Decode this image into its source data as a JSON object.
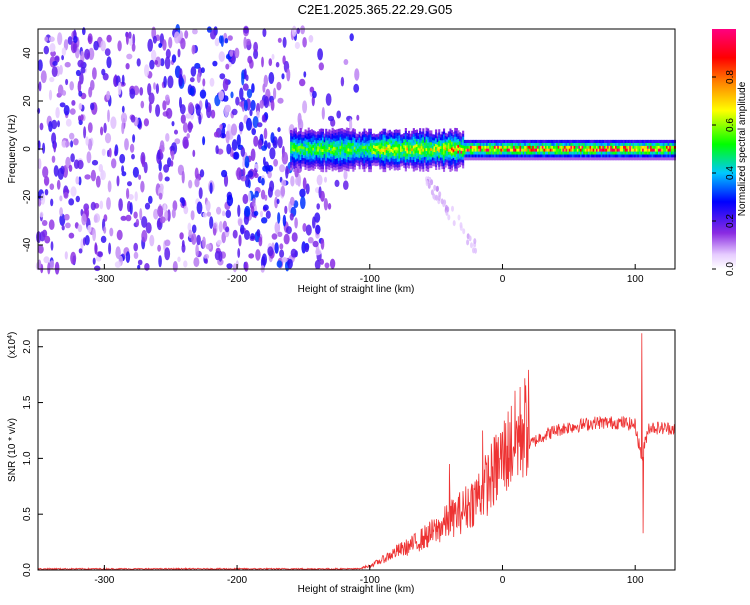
{
  "title": "C2E1.2025.365.22.29.G05",
  "chart_data": [
    {
      "type": "heatmap",
      "title": "C2E1.2025.365.22.29.G05",
      "xlabel": "Height of straight line (km)",
      "ylabel": "Frequency (Hz)",
      "xlim": [
        -350,
        130
      ],
      "ylim": [
        -50,
        50
      ],
      "x_ticks": [
        "-300",
        "-200",
        "-100",
        "0",
        "100"
      ],
      "y_ticks": [
        "-40",
        "-20",
        "0",
        "20",
        "40"
      ],
      "colorbar": {
        "label": "Normalized spectral amplitude",
        "range": [
          0,
          1
        ],
        "ticks": [
          "0.0",
          "0.2",
          "0.4",
          "0.6",
          "0.8"
        ],
        "colors": [
          "#ffffff",
          "#8a2be2",
          "#0000ff",
          "#00c8ff",
          "#00ff00",
          "#ffff00",
          "#ff8000",
          "#ff0000",
          "#ff0080"
        ]
      },
      "features": {
        "scatter_region_km": [
          -350,
          -105
        ],
        "scatter_amplitude": 0.15,
        "band_start_km": -160,
        "band_frequency_hz": 0,
        "band_halfwidth_hz": 4,
        "band_peak_amplitude": 1.0
      }
    },
    {
      "type": "line",
      "xlabel": "Height of straight line (km)",
      "ylabel": "SNR (10 * v/v)",
      "y_multiplier": "(x10",
      "y_multiplier_exp": "4",
      "y_multiplier_close": ")",
      "xlim": [
        -350,
        130
      ],
      "ylim": [
        0,
        2.15
      ],
      "x_ticks": [
        "-300",
        "-200",
        "-100",
        "0",
        "100"
      ],
      "y_ticks": [
        "0.0",
        "0.5",
        "1.0",
        "1.5",
        "2.0"
      ],
      "series_color": "#ee3333",
      "envelope": {
        "x": [
          -350,
          -110,
          -100,
          -90,
          -80,
          -70,
          -60,
          -50,
          -40,
          -30,
          -20,
          -10,
          0,
          10,
          20,
          30,
          40,
          50,
          60,
          70,
          80,
          90,
          100,
          105,
          110,
          120,
          130
        ],
        "y": [
          0.01,
          0.01,
          0.03,
          0.08,
          0.14,
          0.18,
          0.24,
          0.3,
          0.38,
          0.45,
          0.55,
          0.68,
          0.85,
          1.0,
          1.12,
          1.2,
          1.25,
          1.28,
          1.3,
          1.32,
          1.32,
          1.32,
          1.3,
          1.0,
          1.28,
          1.27,
          1.27
        ]
      },
      "notable_points": [
        {
          "x": -40,
          "y": 0.95
        },
        {
          "x": -15,
          "y": 1.25
        },
        {
          "x": 15,
          "y": 1.35
        },
        {
          "x": 105,
          "y": 2.12
        },
        {
          "x": 106,
          "y": 0.33
        }
      ]
    }
  ]
}
